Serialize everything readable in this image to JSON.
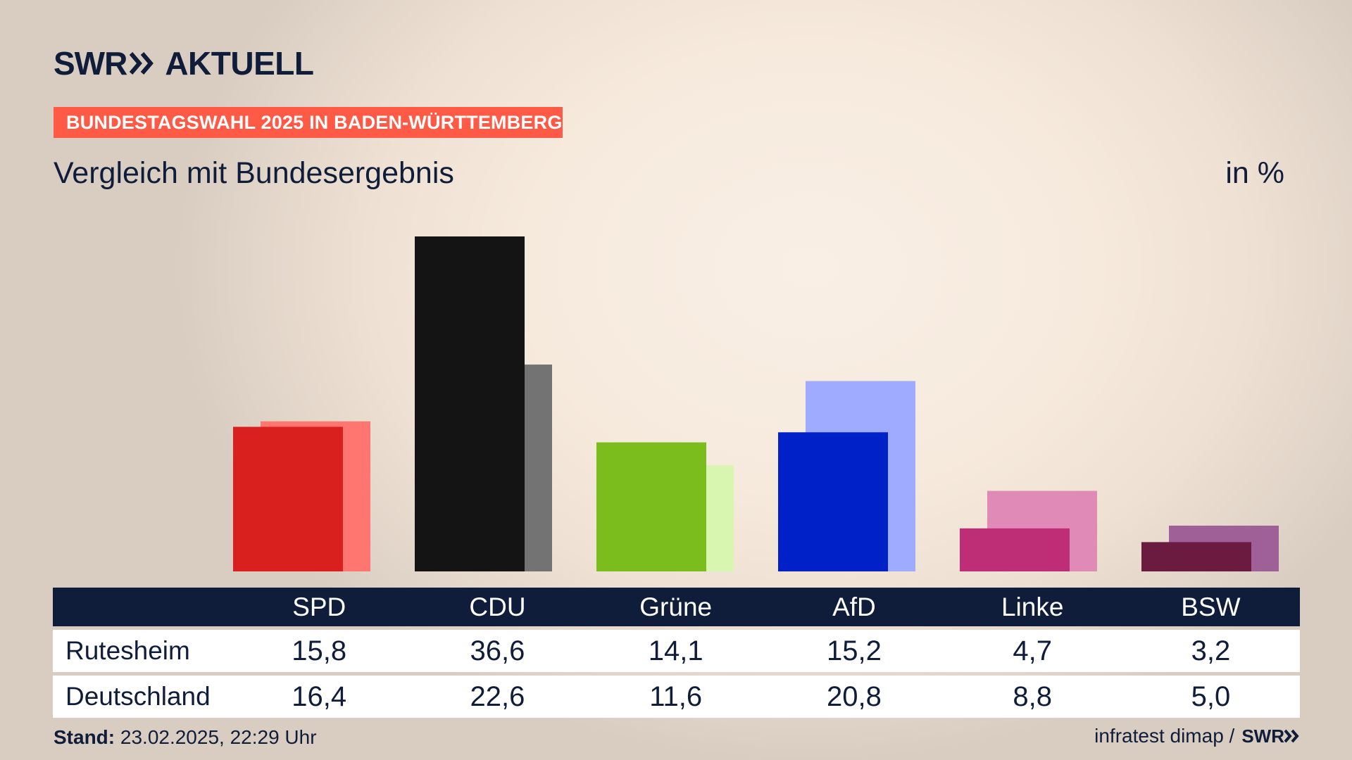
{
  "logo": {
    "swr": "SWR",
    "aktuell": "AKTUELL"
  },
  "banner": "BUNDESTAGSWAHL 2025 IN BADEN-WÜRTTEMBERG",
  "subtitle": "Vergleich mit Bundesergebnis",
  "unit": "in %",
  "table": {
    "rows": [
      {
        "label": "Rutesheim",
        "values": [
          "15,8",
          "36,6",
          "14,1",
          "15,2",
          "4,7",
          "3,2"
        ]
      },
      {
        "label": "Deutschland",
        "values": [
          "16,4",
          "22,6",
          "11,6",
          "20,8",
          "8,8",
          "5,0"
        ]
      }
    ]
  },
  "footer": {
    "stand_label": "Stand:",
    "stand_value": "23.02.2025, 22:29 Uhr",
    "source": "infratest dimap /",
    "source_logo": "SWR"
  },
  "chart_data": {
    "type": "bar",
    "categories": [
      "SPD",
      "CDU",
      "Grüne",
      "AfD",
      "Linke",
      "BSW"
    ],
    "series": [
      {
        "name": "Rutesheim",
        "values": [
          15.8,
          36.6,
          14.1,
          15.2,
          4.7,
          3.2
        ]
      },
      {
        "name": "Deutschland",
        "values": [
          16.4,
          22.6,
          11.6,
          20.8,
          8.8,
          5.0
        ]
      }
    ],
    "colors": {
      "primary": [
        "#d9201f",
        "#141414",
        "#7abd1d",
        "#0020c8",
        "#bd2e77",
        "#6b1a40"
      ],
      "secondary": [
        "#ff7670",
        "#737373",
        "#d8f6b0",
        "#9fabff",
        "#e08ab8",
        "#9f6098"
      ]
    },
    "ylim": [
      0,
      36.6
    ],
    "grid": false,
    "legend": "table-below"
  }
}
